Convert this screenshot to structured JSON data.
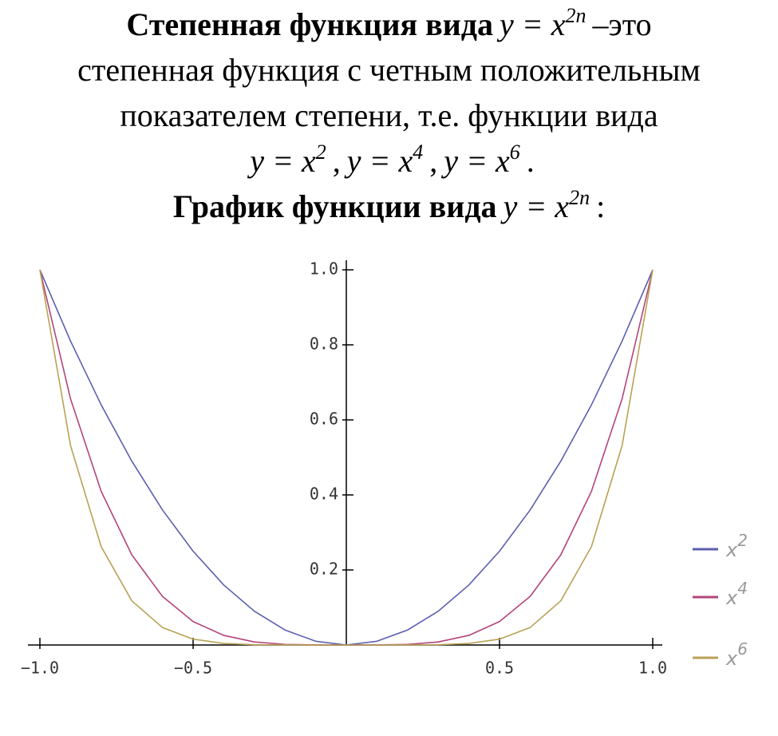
{
  "intro": {
    "bold": "Степенная функция вида",
    "formula": {
      "base": "y = x",
      "exp": "2n"
    },
    "lines": [
      "–это",
      "степенная функция с четным положительным",
      "показателем степени, т.е. функции вида"
    ],
    "examples": [
      {
        "base": "y = x",
        "exp": "2"
      },
      {
        "base": "y = x",
        "exp": "4"
      },
      {
        "base": "y = x",
        "exp": "6"
      }
    ],
    "separator": ",",
    "end": "."
  },
  "heading": {
    "bold": "График функции вида",
    "formula": {
      "base": "y = x",
      "exp": "2n"
    },
    "end": ":"
  },
  "chart_data": {
    "type": "line",
    "x": [
      -1.0,
      -0.9,
      -0.8,
      -0.7,
      -0.6,
      -0.5,
      -0.4,
      -0.3,
      -0.2,
      -0.1,
      0,
      0.1,
      0.2,
      0.3,
      0.4,
      0.5,
      0.6,
      0.7,
      0.8,
      0.9,
      1.0
    ],
    "series": [
      {
        "name": "x",
        "exponent": "2",
        "color": "#5b5fb0",
        "values": [
          1,
          0.81,
          0.64,
          0.49,
          0.36,
          0.25,
          0.16,
          0.09,
          0.04,
          0.01,
          0,
          0.01,
          0.04,
          0.09,
          0.16,
          0.25,
          0.36,
          0.49,
          0.64,
          0.81,
          1
        ]
      },
      {
        "name": "x",
        "exponent": "4",
        "color": "#b3457a",
        "values": [
          1,
          0.6561,
          0.4096,
          0.2401,
          0.1296,
          0.0625,
          0.0256,
          0.0081,
          0.0016,
          0.0001,
          0,
          0.0001,
          0.0016,
          0.0081,
          0.0256,
          0.0625,
          0.1296,
          0.2401,
          0.4096,
          0.6561,
          1
        ]
      },
      {
        "name": "x",
        "exponent": "6",
        "color": "#b8a255",
        "values": [
          1,
          0.531441,
          0.262144,
          0.117649,
          0.046656,
          0.015625,
          0.004096,
          0.000729,
          6.4e-05,
          1e-06,
          0,
          1e-06,
          6.4e-05,
          0.000729,
          0.004096,
          0.015625,
          0.046656,
          0.117649,
          0.262144,
          0.531441,
          1
        ]
      }
    ],
    "xlim": [
      -1.0,
      1.0
    ],
    "ylim": [
      0,
      1.0
    ],
    "xticks": [
      {
        "value": -1.0,
        "label": "−1.0"
      },
      {
        "value": -0.5,
        "label": "−0.5"
      },
      0.5,
      {
        "value": 1.0,
        "label": "1.0"
      }
    ],
    "yticks": [
      0.2,
      0.4,
      0.6,
      0.8,
      {
        "value": 1.0,
        "label": "1.0"
      }
    ],
    "legend": "right"
  }
}
